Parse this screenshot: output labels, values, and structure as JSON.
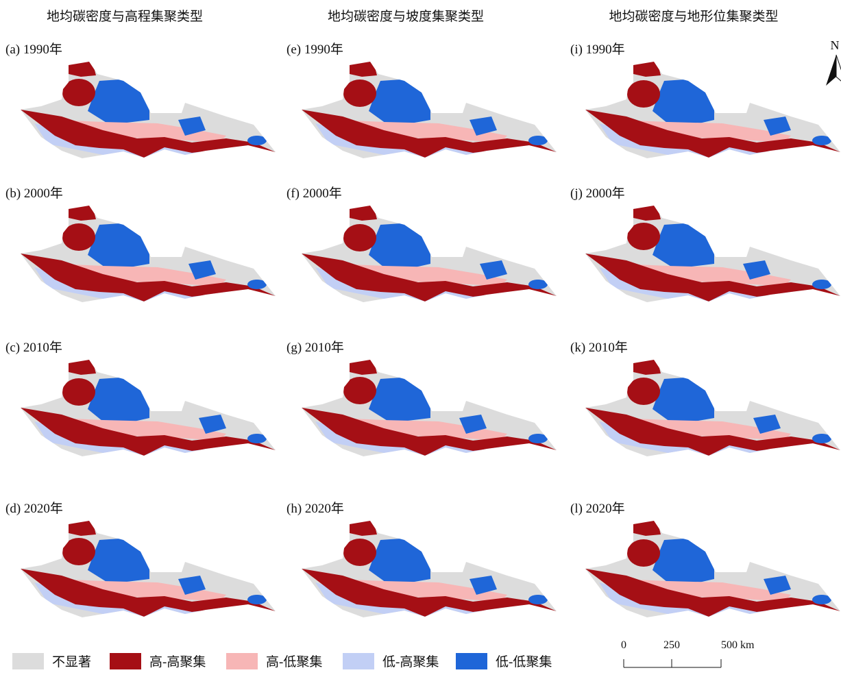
{
  "columns": [
    {
      "title": "地均碳密度与高程集聚类型",
      "panels": [
        "(a) 1990年",
        "(b) 2000年",
        "(c) 2010年",
        "(d) 2020年"
      ]
    },
    {
      "title": "地均碳密度与坡度集聚类型",
      "panels": [
        "(e) 1990年",
        "(f) 2000年",
        "(g) 2010年",
        "(h) 2020年"
      ]
    },
    {
      "title": "地均碳密度与地形位集聚类型",
      "panels": [
        "(i) 1990年",
        "(j) 2000年",
        "(k) 2010年",
        "(l) 2020年"
      ]
    }
  ],
  "legend": [
    {
      "label": "不显著",
      "color": "#dcdcdc"
    },
    {
      "label": "高-高聚集",
      "color": "#a50f15"
    },
    {
      "label": "高-低聚集",
      "color": "#f7b6b6"
    },
    {
      "label": "低-高聚集",
      "color": "#c2cff5"
    },
    {
      "label": "低-低聚集",
      "color": "#1f66d8"
    }
  ],
  "scale_bar": [
    "0",
    "250",
    "500 km"
  ],
  "north_arrow": "N"
}
